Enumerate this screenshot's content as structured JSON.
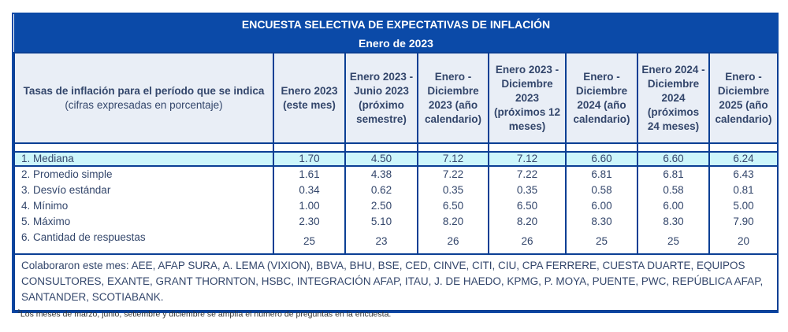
{
  "title": "ENCUESTA SELECTIVA DE EXPECTATIVAS DE INFLACIÓN",
  "subtitle": "Enero de 2023",
  "header": {
    "first_label": "Tasas de inflación para el período que se indica",
    "first_sublabel": "(cifras expresadas en porcentaje)",
    "columns": [
      "Enero 2023 (este mes)",
      "Enero 2023 - Junio 2023 (próximo semestre)",
      "Enero - Diciembre 2023 (año calendario)",
      "Enero 2023 - Diciembre 2023 (próximos 12 meses)",
      "Enero - Diciembre 2024 (año calendario)",
      "Enero 2024 - Diciembre 2024 (próximos 24 meses)",
      "Enero - Diciembre 2025 (año calendario)"
    ]
  },
  "rows": [
    {
      "label": "1. Mediana",
      "values": [
        "1.70",
        "4.50",
        "7.12",
        "7.12",
        "6.60",
        "6.60",
        "6.24"
      ]
    },
    {
      "label": "2. Promedio simple",
      "values": [
        "1.61",
        "4.38",
        "7.22",
        "7.22",
        "6.81",
        "6.81",
        "6.43"
      ]
    },
    {
      "label": "3. Desvío estándar",
      "values": [
        "0.34",
        "0.62",
        "0.35",
        "0.35",
        "0.58",
        "0.58",
        "0.81"
      ]
    },
    {
      "label": "4. Mínimo",
      "values": [
        "1.00",
        "2.50",
        "6.50",
        "6.50",
        "6.00",
        "6.00",
        "5.00"
      ]
    },
    {
      "label": "5. Máximo",
      "values": [
        "2.30",
        "5.10",
        "8.20",
        "8.20",
        "8.30",
        "8.30",
        "7.90"
      ]
    },
    {
      "label": "6. Cantidad de respuestas",
      "values": [
        "25",
        "23",
        "26",
        "26",
        "25",
        "25",
        "20"
      ]
    }
  ],
  "collaborators": "Colaboraron este mes: AEE, AFAP SURA, A. LEMA (VIXION), BBVA, BHU, BSE, CED, CINVE, CITI, CIU, CPA FERRERE, CUESTA DUARTE, EQUIPOS CONSULTORES, EXANTE, GRANT THORNTON, HSBC, INTEGRACIÓN AFAP, ITAU, J. DE HAEDO, KPMG, P. MOYA, PUENTE, PWC, REPÚBLICA AFAP, SANTANDER, SCOTIABANK.",
  "footnote_mark": "1",
  "footnote": "Los meses de marzo, junio, setiembre y diciembre se amplía el número de preguntas en la encuesta."
}
